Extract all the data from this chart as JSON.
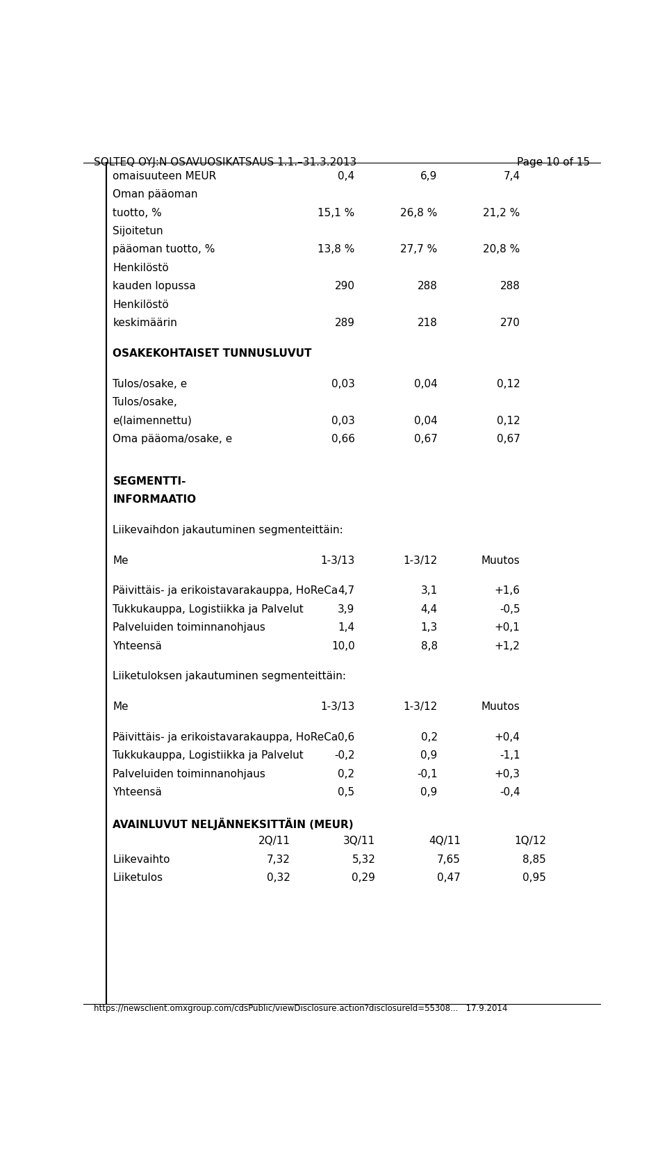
{
  "header_left": "SOLTEQ OYJ:N OSAVUOSIKATSAUS 1.1.–31.3.2013",
  "header_right": "Page 10 of 15",
  "footer": "https://newsclient.omxgroup.com/cdsPublic/viewDisclosure.action?disclosureId=55308...   17.9.2014",
  "background_color": "#ffffff",
  "border_color": "#000000",
  "text_color": "#000000",
  "font_size": 11,
  "header_font_size": 11,
  "rows": [
    {
      "label": "omaisuuteen MEUR",
      "col1": "0,4",
      "col2": "6,9",
      "col3": "7,4",
      "bold": false,
      "spacer": false
    },
    {
      "label": "Oman pääoman",
      "col1": "",
      "col2": "",
      "col3": "",
      "bold": false,
      "spacer": false
    },
    {
      "label": "tuotto, %",
      "col1": "15,1 %",
      "col2": "26,8 %",
      "col3": "21,2 %",
      "bold": false,
      "spacer": false
    },
    {
      "label": "Sijoitetun",
      "col1": "",
      "col2": "",
      "col3": "",
      "bold": false,
      "spacer": false
    },
    {
      "label": "pääoman tuotto, %",
      "col1": "13,8 %",
      "col2": "27,7 %",
      "col3": "20,8 %",
      "bold": false,
      "spacer": false
    },
    {
      "label": "Henkilöstö",
      "col1": "",
      "col2": "",
      "col3": "",
      "bold": false,
      "spacer": false
    },
    {
      "label": "kauden lopussa",
      "col1": "290",
      "col2": "288",
      "col3": "288",
      "bold": false,
      "spacer": false
    },
    {
      "label": "Henkilöstö",
      "col1": "",
      "col2": "",
      "col3": "",
      "bold": false,
      "spacer": false
    },
    {
      "label": "keskimäärin",
      "col1": "289",
      "col2": "218",
      "col3": "270",
      "bold": false,
      "spacer": false
    },
    {
      "label": "",
      "col1": "",
      "col2": "",
      "col3": "",
      "bold": false,
      "spacer": true
    },
    {
      "label": "OSAKEKOHTAISET TUNNUSLUVUT",
      "col1": "",
      "col2": "",
      "col3": "",
      "bold": true,
      "spacer": false
    },
    {
      "label": "",
      "col1": "",
      "col2": "",
      "col3": "",
      "bold": false,
      "spacer": true
    },
    {
      "label": "Tulos/osake, e",
      "col1": "0,03",
      "col2": "0,04",
      "col3": "0,12",
      "bold": false,
      "spacer": false
    },
    {
      "label": "Tulos/osake,",
      "col1": "",
      "col2": "",
      "col3": "",
      "bold": false,
      "spacer": false
    },
    {
      "label": "e(laimennettu)",
      "col1": "0,03",
      "col2": "0,04",
      "col3": "0,12",
      "bold": false,
      "spacer": false
    },
    {
      "label": "Oma pääoma/osake, e",
      "col1": "0,66",
      "col2": "0,67",
      "col3": "0,67",
      "bold": false,
      "spacer": false
    },
    {
      "label": "",
      "col1": "",
      "col2": "",
      "col3": "",
      "bold": false,
      "spacer": true
    },
    {
      "label": "",
      "col1": "",
      "col2": "",
      "col3": "",
      "bold": false,
      "spacer": true
    },
    {
      "label": "SEGMENTTI-",
      "col1": "",
      "col2": "",
      "col3": "",
      "bold": true,
      "spacer": false
    },
    {
      "label": "INFORMAATIO",
      "col1": "",
      "col2": "",
      "col3": "",
      "bold": true,
      "spacer": false
    },
    {
      "label": "",
      "col1": "",
      "col2": "",
      "col3": "",
      "bold": false,
      "spacer": true
    },
    {
      "label": "Liikevaihdon jakautuminen segmenteittäin:",
      "col1": "",
      "col2": "",
      "col3": "",
      "bold": false,
      "spacer": false
    },
    {
      "label": "",
      "col1": "",
      "col2": "",
      "col3": "",
      "bold": false,
      "spacer": true
    },
    {
      "label": "Me",
      "col1": "1-3/13",
      "col2": "1-3/12",
      "col3": "Muutos",
      "bold": false,
      "spacer": false,
      "header_row": true
    },
    {
      "label": "",
      "col1": "",
      "col2": "",
      "col3": "",
      "bold": false,
      "spacer": true
    },
    {
      "label": "Päivittäis- ja erikoistavarakauppa, HoReCa",
      "col1": "4,7",
      "col2": "3,1",
      "col3": "+1,6",
      "bold": false,
      "spacer": false
    },
    {
      "label": "Tukkukauppa, Logistiikka ja Palvelut",
      "col1": "3,9",
      "col2": "4,4",
      "col3": "-0,5",
      "bold": false,
      "spacer": false
    },
    {
      "label": "Palveluiden toiminnanohjaus",
      "col1": "1,4",
      "col2": "1,3",
      "col3": "+0,1",
      "bold": false,
      "spacer": false
    },
    {
      "label": "Yhteensä",
      "col1": "10,0",
      "col2": "8,8",
      "col3": "+1,2",
      "bold": false,
      "spacer": false
    },
    {
      "label": "",
      "col1": "",
      "col2": "",
      "col3": "",
      "bold": false,
      "spacer": true
    },
    {
      "label": "Liiketuloksen jakautuminen segmenteittäin:",
      "col1": "",
      "col2": "",
      "col3": "",
      "bold": false,
      "spacer": false
    },
    {
      "label": "",
      "col1": "",
      "col2": "",
      "col3": "",
      "bold": false,
      "spacer": true
    },
    {
      "label": "Me",
      "col1": "1-3/13",
      "col2": "1-3/12",
      "col3": "Muutos",
      "bold": false,
      "spacer": false,
      "header_row": true
    },
    {
      "label": "",
      "col1": "",
      "col2": "",
      "col3": "",
      "bold": false,
      "spacer": true
    },
    {
      "label": "Päivittäis- ja erikoistavarakauppa, HoReCa",
      "col1": "0,6",
      "col2": "0,2",
      "col3": "+0,4",
      "bold": false,
      "spacer": false
    },
    {
      "label": "Tukkukauppa, Logistiikka ja Palvelut",
      "col1": "-0,2",
      "col2": "0,9",
      "col3": "-1,1",
      "bold": false,
      "spacer": false
    },
    {
      "label": "Palveluiden toiminnanohjaus",
      "col1": "0,2",
      "col2": "-0,1",
      "col3": "+0,3",
      "bold": false,
      "spacer": false
    },
    {
      "label": "Yhteensä",
      "col1": "0,5",
      "col2": "0,9",
      "col3": "-0,4",
      "bold": false,
      "spacer": false
    },
    {
      "label": "",
      "col1": "",
      "col2": "",
      "col3": "",
      "bold": false,
      "spacer": true
    },
    {
      "label": "AVAINLUVUT NELJÄNNEKSITTÄIN (MEUR)",
      "col1": "",
      "col2": "",
      "col3": "",
      "bold": true,
      "spacer": false
    },
    {
      "label": "",
      "col1": "2Q/11",
      "col2": "3Q/11",
      "col3": "4Q/11",
      "col4": "1Q/12",
      "bold": false,
      "spacer": false,
      "four_col": true
    },
    {
      "label": "Liikevaihto",
      "col1": "7,32",
      "col2": "5,32",
      "col3": "7,65",
      "col4": "8,85",
      "bold": false,
      "spacer": false,
      "four_col": true
    },
    {
      "label": "Liiketulos",
      "col1": "0,32",
      "col2": "0,29",
      "col3": "0,47",
      "col4": "0,95",
      "bold": false,
      "spacer": false,
      "four_col": true
    }
  ]
}
